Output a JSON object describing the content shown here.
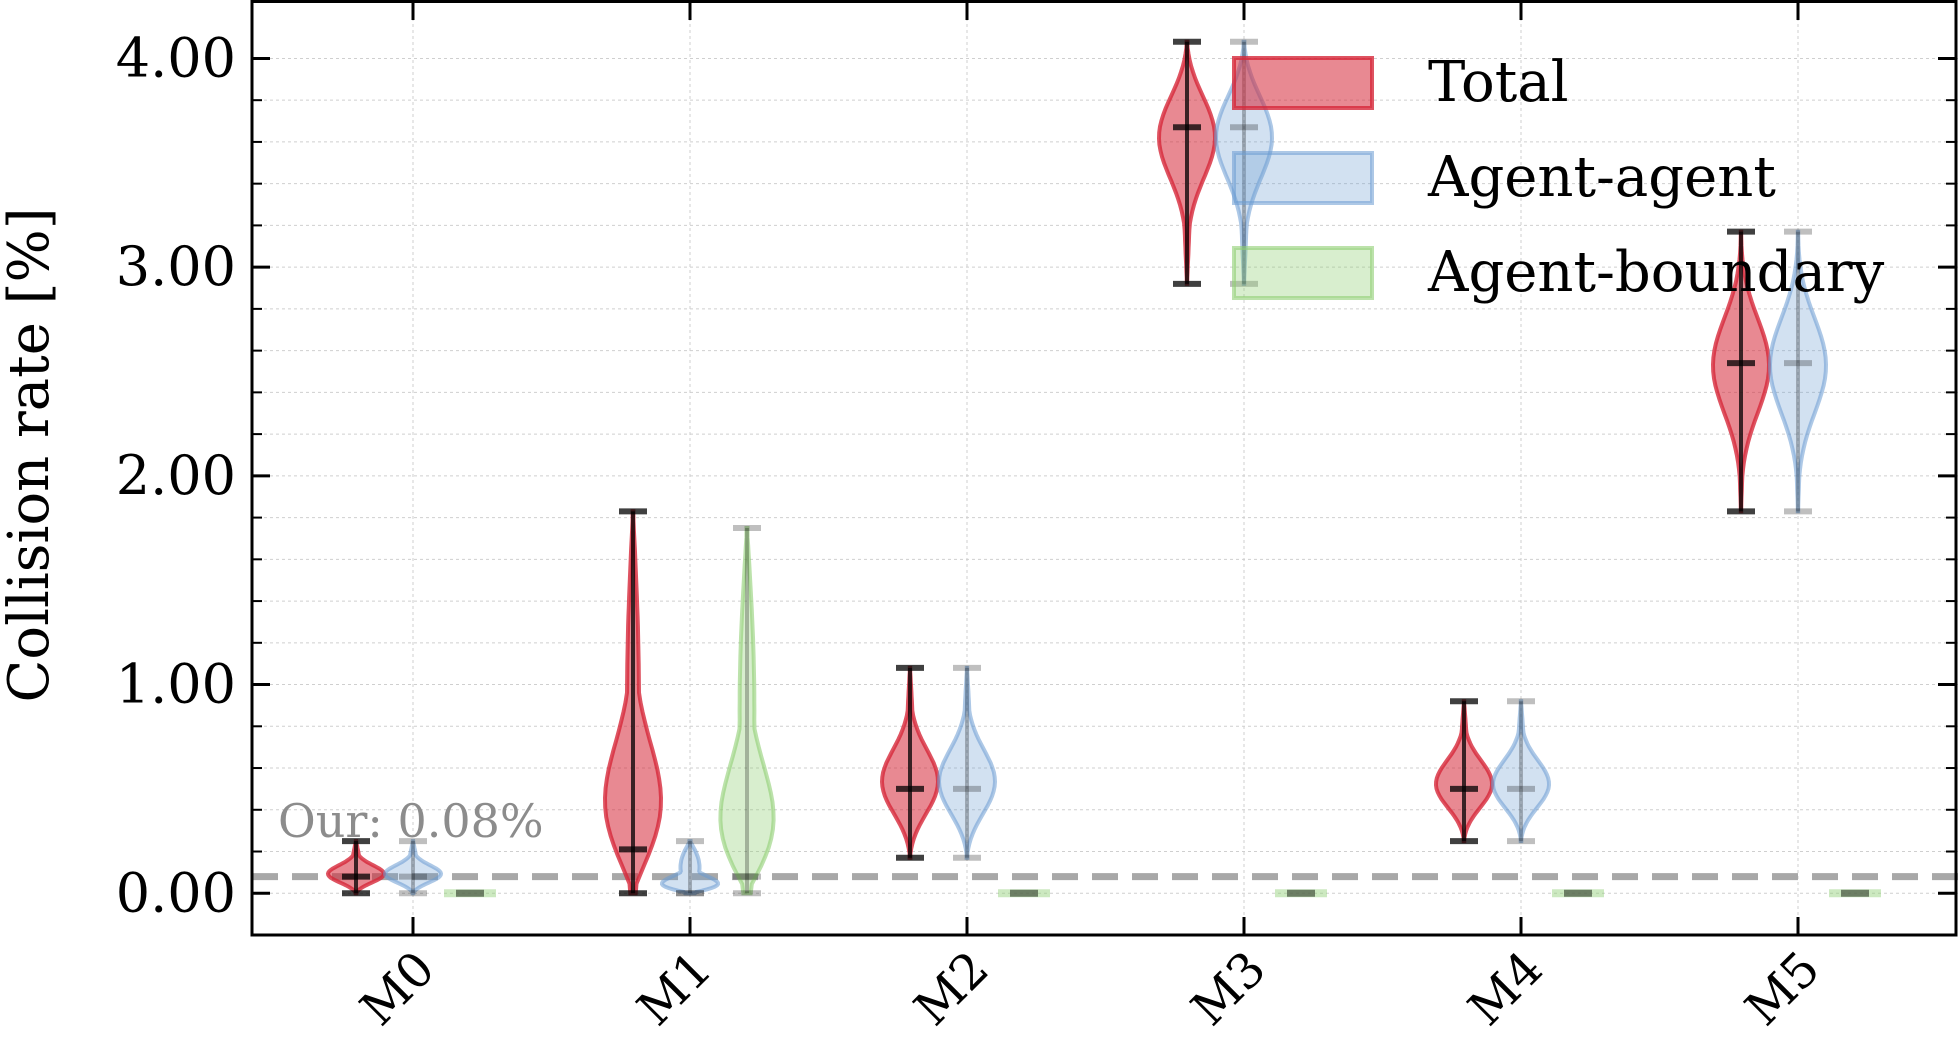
{
  "chart_data": {
    "type": "violin",
    "ylabel": "Collision rate [%]",
    "ylim": [
      -0.2,
      4.28
    ],
    "yticks": [
      "0.00",
      "1.00",
      "2.00",
      "3.00",
      "4.00"
    ],
    "ytick_values": [
      0,
      1,
      2,
      3,
      4
    ],
    "grid": true,
    "legend_position": "top-right",
    "categories": [
      "M0",
      "M1",
      "M2",
      "M3",
      "M4",
      "M5"
    ],
    "series": [
      {
        "name": "Total",
        "color": "#d62839",
        "opacity": 0.55,
        "values": [
          {
            "min": 0.0,
            "median": 0.08,
            "max": 0.25
          },
          {
            "min": 0.0,
            "median": 0.21,
            "max": 1.83
          },
          {
            "min": 0.17,
            "median": 0.5,
            "max": 1.08
          },
          {
            "min": 2.92,
            "median": 3.67,
            "max": 4.08
          },
          {
            "min": 0.25,
            "median": 0.5,
            "max": 0.92
          },
          {
            "min": 1.83,
            "median": 2.54,
            "max": 3.17
          }
        ]
      },
      {
        "name": "Agent-agent",
        "color": "#6a9bd1",
        "opacity": 0.3,
        "values": [
          {
            "min": 0.0,
            "median": 0.08,
            "max": 0.25
          },
          {
            "min": 0.0,
            "median": 0.0,
            "max": 0.25
          },
          {
            "min": 0.17,
            "median": 0.5,
            "max": 1.08
          },
          {
            "min": 2.92,
            "median": 3.67,
            "max": 4.08
          },
          {
            "min": 0.25,
            "median": 0.5,
            "max": 0.92
          },
          {
            "min": 1.83,
            "median": 2.54,
            "max": 3.17
          }
        ]
      },
      {
        "name": "Agent-boundary",
        "color": "#8fcf73",
        "opacity": 0.35,
        "values": [
          {
            "min": 0.0,
            "median": 0.0,
            "max": 0.0
          },
          {
            "min": 0.0,
            "median": 0.08,
            "max": 1.75
          },
          {
            "min": 0.0,
            "median": 0.0,
            "max": 0.0
          },
          {
            "min": 0.0,
            "median": 0.0,
            "max": 0.0
          },
          {
            "min": 0.0,
            "median": 0.0,
            "max": 0.0
          },
          {
            "min": 0.0,
            "median": 0.0,
            "max": 0.0
          }
        ]
      }
    ],
    "reference_line": {
      "value": 0.08,
      "label": "Our: 0.08%",
      "color": "#a8a8a8",
      "style": "dashed"
    }
  }
}
